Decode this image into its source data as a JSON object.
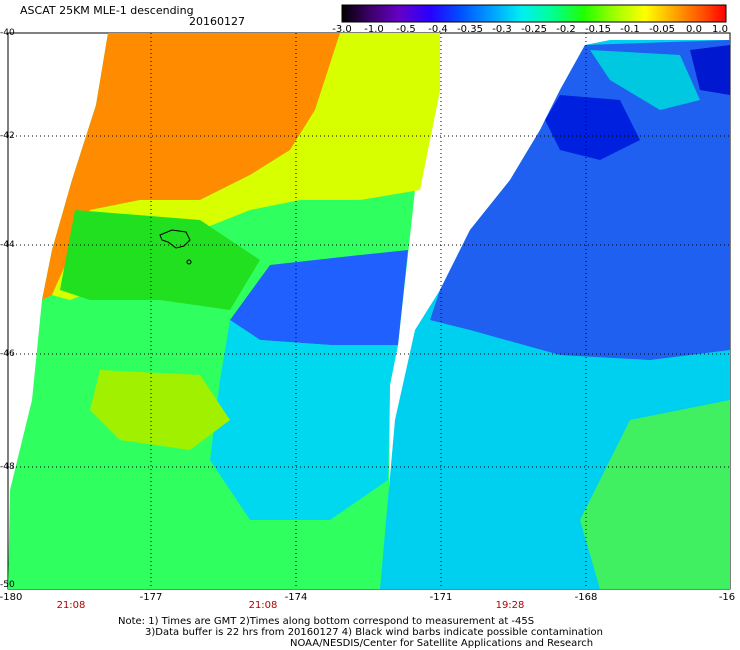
{
  "header": {
    "title": "ASCAT 25KM MLE-1 descending",
    "date": "20160127"
  },
  "colorbar": {
    "labels": [
      "-3.0",
      "-1.0",
      "-0.5",
      "-0.4",
      "-0.35",
      "-0.3",
      "-0.25",
      "-0.2",
      "-0.15",
      "-0.1",
      "-0.05",
      "0.0",
      "1.0"
    ],
    "colors": [
      "#000000",
      "#3c0064",
      "#6400c8",
      "#2800ff",
      "#0050ff",
      "#00a0ff",
      "#00f0f0",
      "#00ff90",
      "#20ff00",
      "#a0ff00",
      "#ffff00",
      "#ffa000",
      "#ff5000",
      "#ff0000"
    ]
  },
  "axes": {
    "lat_labels": [
      "-40",
      "-42",
      "-44",
      "-46",
      "-48",
      "-50"
    ],
    "lon_labels": [
      "-180",
      "-177",
      "-174",
      "-171",
      "-168",
      "-16"
    ]
  },
  "times": [
    "21:08",
    "21:08",
    "19:28"
  ],
  "notes": {
    "line1": "Note: 1) Times are GMT 2)Times along bottom correspond to measurement at -45S",
    "line2": "3)Data buffer is 22 hrs from 20160127 4) Black wind barbs indicate possible contamination",
    "line3": "NOAA/NESDIS/Center for Satellite Applications and Research"
  }
}
